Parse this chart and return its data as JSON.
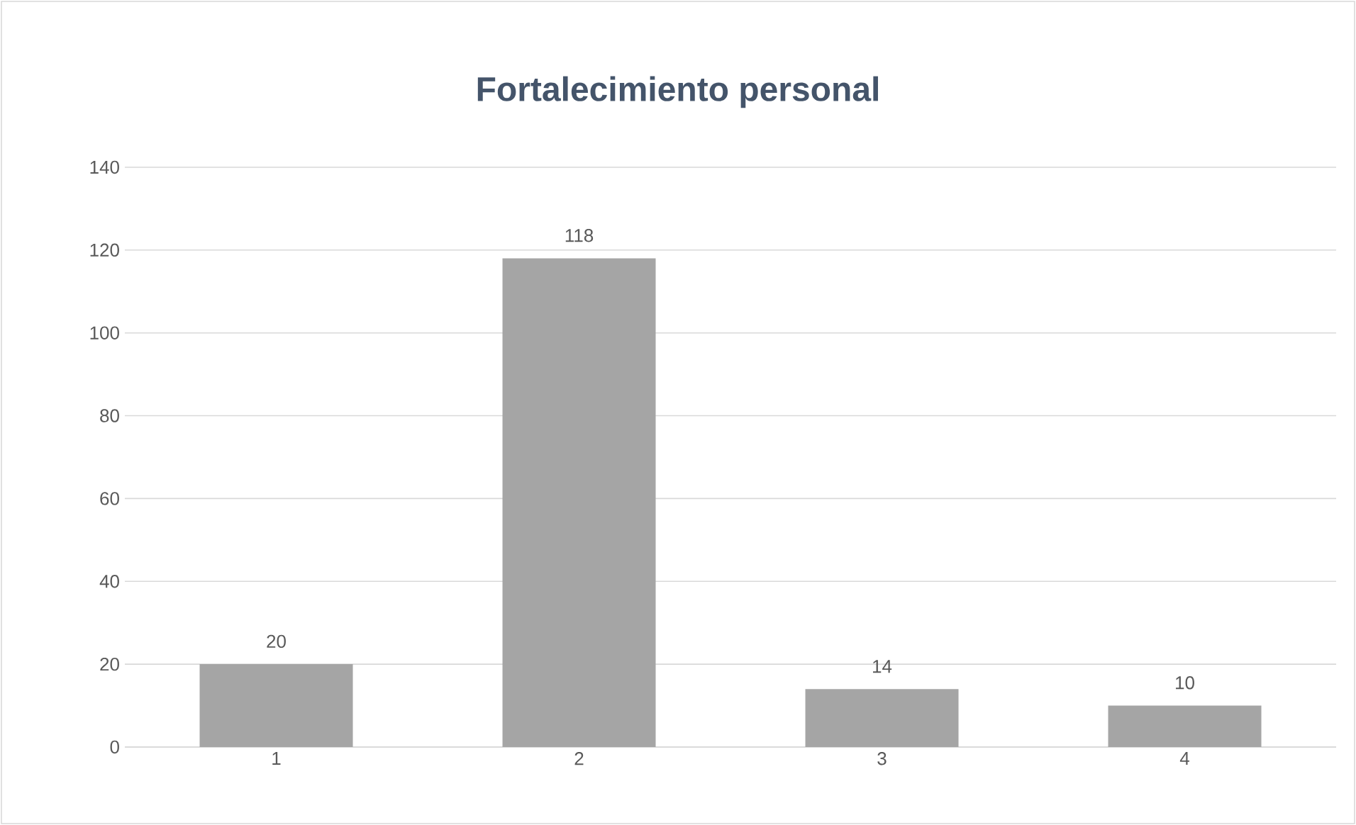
{
  "chart_data": {
    "type": "bar",
    "title": "Fortalecimiento personal",
    "categories": [
      "1",
      "2",
      "3",
      "4"
    ],
    "values": [
      20,
      118,
      14,
      10
    ],
    "color": "#a5a5a5",
    "ylim": [
      0,
      140
    ],
    "yticks": [
      0,
      20,
      40,
      60,
      80,
      100,
      120,
      140
    ],
    "grid": "y",
    "data_labels": true
  }
}
